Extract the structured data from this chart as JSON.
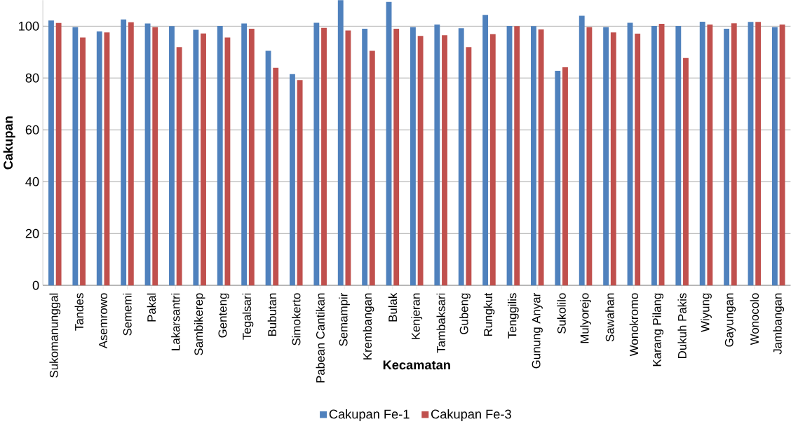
{
  "chart_data": {
    "type": "bar",
    "xlabel": "Kecamatan",
    "ylabel": "Cakupan",
    "categories": [
      "Sukomanunggal",
      "Tandes",
      "Asemrowo",
      "Sememi",
      "Pakal",
      "Lakarsantri",
      "Sambikerep",
      "Genteng",
      "Tegalsari",
      "Bubutan",
      "Simokerto",
      "Pabean Cantikan",
      "Semampir",
      "Krembangan",
      "Bulak",
      "Kenjeran",
      "Tambaksari",
      "Gubeng",
      "Rungkut",
      "Tenggilis",
      "Gunung Anyar",
      "Sukolilo",
      "Mulyorejo",
      "Sawahan",
      "Wonokromo",
      "Karang Pilang",
      "Dukuh Pakis",
      "Wiyung",
      "Gayungan",
      "Wonocolo",
      "Jambangan"
    ],
    "series": [
      {
        "name": "Cakupan Fe-1",
        "color": "#4f81bd",
        "values": [
          102.2,
          99.6,
          98,
          102.6,
          101,
          100,
          98.6,
          100.1,
          101,
          90.5,
          81.5,
          101.3,
          110,
          99,
          109.3,
          99.6,
          100.6,
          99.2,
          104.3,
          100.1,
          100,
          82.8,
          104,
          99.6,
          101.3,
          100.1,
          100.1,
          101.7,
          99,
          101.6,
          99.6
        ]
      },
      {
        "name": "Cakupan Fe-3",
        "color": "#c0504d",
        "values": [
          101.2,
          95.6,
          97.6,
          101.5,
          99.6,
          91.9,
          97.2,
          95.6,
          99,
          83.9,
          79.2,
          99.3,
          98.3,
          90.5,
          99,
          96.2,
          96.5,
          91.9,
          96.9,
          100,
          98.7,
          84.1,
          99.6,
          97.6,
          97.1,
          100.9,
          87.7,
          100.6,
          101.1,
          101.6,
          100.6
        ]
      }
    ],
    "ylim": [
      0,
      110
    ],
    "yticks": [
      0,
      20,
      40,
      60,
      80,
      100
    ],
    "grid": "y",
    "legend": "bottom"
  }
}
